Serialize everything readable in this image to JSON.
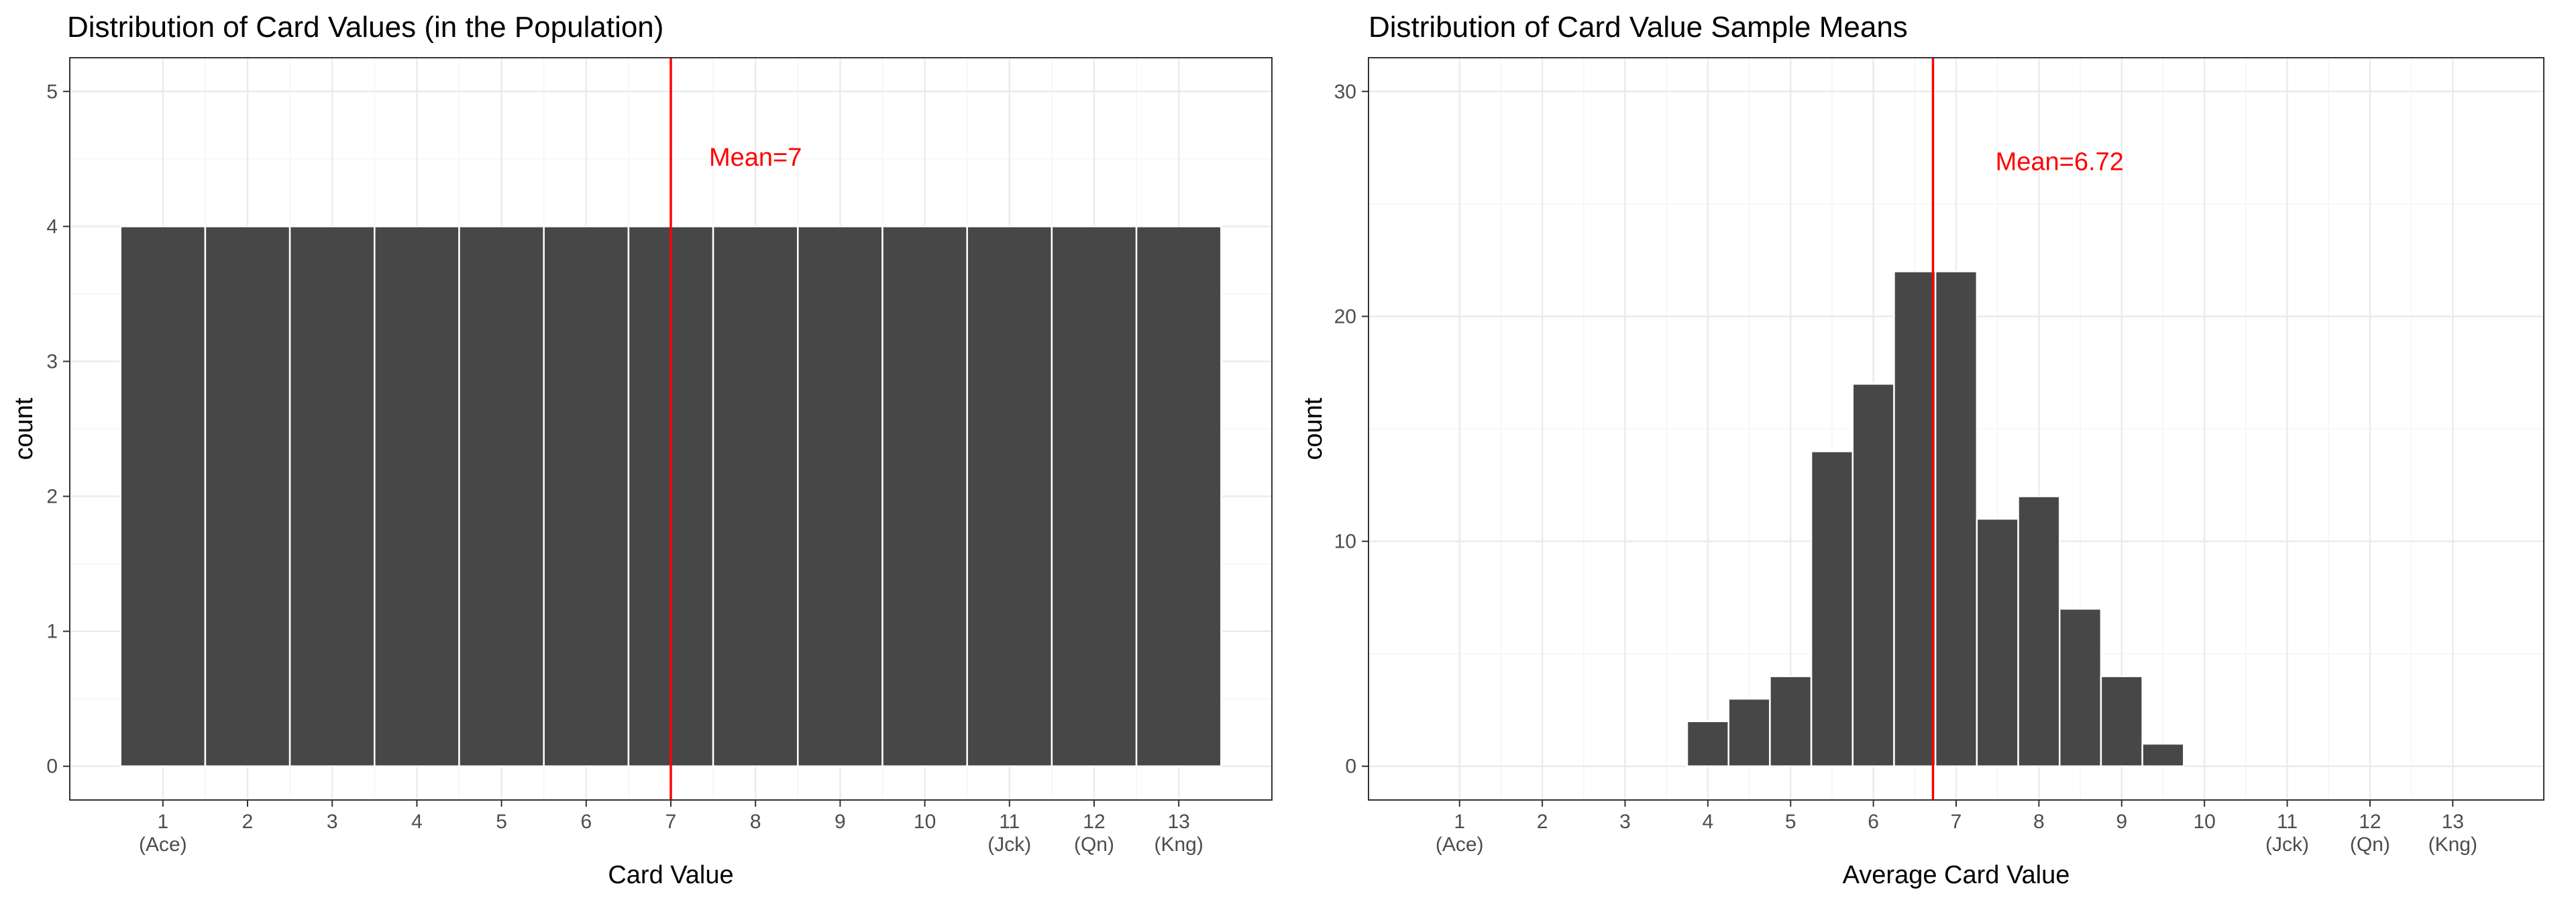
{
  "chart_data": [
    {
      "type": "bar",
      "title": "Distribution of Card Values (in the Population)",
      "xlabel": "Card Value",
      "ylabel": "count",
      "xlim": [
        -0.1,
        14.1
      ],
      "ylim": [
        -0.25,
        5.25
      ],
      "x_ticks": [
        {
          "value": 1,
          "lines": [
            "1",
            "(Ace)"
          ]
        },
        {
          "value": 2,
          "lines": [
            "2"
          ]
        },
        {
          "value": 3,
          "lines": [
            "3"
          ]
        },
        {
          "value": 4,
          "lines": [
            "4"
          ]
        },
        {
          "value": 5,
          "lines": [
            "5"
          ]
        },
        {
          "value": 6,
          "lines": [
            "6"
          ]
        },
        {
          "value": 7,
          "lines": [
            "7"
          ]
        },
        {
          "value": 8,
          "lines": [
            "8"
          ]
        },
        {
          "value": 9,
          "lines": [
            "9"
          ]
        },
        {
          "value": 10,
          "lines": [
            "10"
          ]
        },
        {
          "value": 11,
          "lines": [
            "11",
            "(Jck)"
          ]
        },
        {
          "value": 12,
          "lines": [
            "12",
            "(Qn)"
          ]
        },
        {
          "value": 13,
          "lines": [
            "13",
            "(Kng)"
          ]
        }
      ],
      "y_ticks": [
        0,
        1,
        2,
        3,
        4,
        5
      ],
      "bars": [
        {
          "x": 1,
          "value": 4
        },
        {
          "x": 2,
          "value": 4
        },
        {
          "x": 3,
          "value": 4
        },
        {
          "x": 4,
          "value": 4
        },
        {
          "x": 5,
          "value": 4
        },
        {
          "x": 6,
          "value": 4
        },
        {
          "x": 7,
          "value": 4
        },
        {
          "x": 8,
          "value": 4
        },
        {
          "x": 9,
          "value": 4
        },
        {
          "x": 10,
          "value": 4
        },
        {
          "x": 11,
          "value": 4
        },
        {
          "x": 12,
          "value": 4
        },
        {
          "x": 13,
          "value": 4
        }
      ],
      "bar_width": 1,
      "mean_line": {
        "value": 7,
        "label": "Mean=7",
        "label_x": 8.0,
        "label_y": 4.45
      },
      "grid": true
    },
    {
      "type": "bar",
      "title": "Distribution of Card Value Sample Means",
      "xlabel": "Average Card Value",
      "ylabel": "count",
      "xlim": [
        -0.1,
        14.1
      ],
      "ylim": [
        -1.5,
        31.5
      ],
      "x_ticks": [
        {
          "value": 1,
          "lines": [
            "1",
            "(Ace)"
          ]
        },
        {
          "value": 2,
          "lines": [
            "2"
          ]
        },
        {
          "value": 3,
          "lines": [
            "3"
          ]
        },
        {
          "value": 4,
          "lines": [
            "4"
          ]
        },
        {
          "value": 5,
          "lines": [
            "5"
          ]
        },
        {
          "value": 6,
          "lines": [
            "6"
          ]
        },
        {
          "value": 7,
          "lines": [
            "7"
          ]
        },
        {
          "value": 8,
          "lines": [
            "8"
          ]
        },
        {
          "value": 9,
          "lines": [
            "9"
          ]
        },
        {
          "value": 10,
          "lines": [
            "10"
          ]
        },
        {
          "value": 11,
          "lines": [
            "11",
            "(Jck)"
          ]
        },
        {
          "value": 12,
          "lines": [
            "12",
            "(Qn)"
          ]
        },
        {
          "value": 13,
          "lines": [
            "13",
            "(Kng)"
          ]
        }
      ],
      "y_ticks": [
        0,
        10,
        20,
        30
      ],
      "bars": [
        {
          "x": 4.0,
          "value": 2
        },
        {
          "x": 4.5,
          "value": 3
        },
        {
          "x": 5.0,
          "value": 4
        },
        {
          "x": 5.5,
          "value": 14
        },
        {
          "x": 6.0,
          "value": 17
        },
        {
          "x": 6.5,
          "value": 22
        },
        {
          "x": 7.0,
          "value": 22
        },
        {
          "x": 7.5,
          "value": 11
        },
        {
          "x": 8.0,
          "value": 12
        },
        {
          "x": 8.5,
          "value": 7
        },
        {
          "x": 9.0,
          "value": 4
        },
        {
          "x": 9.5,
          "value": 1
        }
      ],
      "bar_width": 0.5,
      "baseline_extent": [
        0.5,
        13.5
      ],
      "mean_line": {
        "value": 6.72,
        "label": "Mean=6.72",
        "label_x": 8.25,
        "label_y": 26.5
      },
      "grid": true
    }
  ],
  "colors": {
    "bar_fill": "#474747",
    "bar_outline": "#ffffff",
    "mean_line": "#ff0000",
    "grid_major": "#ebebeb",
    "grid_minor": "#f5f5f5",
    "panel_border": "#333333",
    "tick_text": "#4d4d4d",
    "title_text": "#000000"
  }
}
